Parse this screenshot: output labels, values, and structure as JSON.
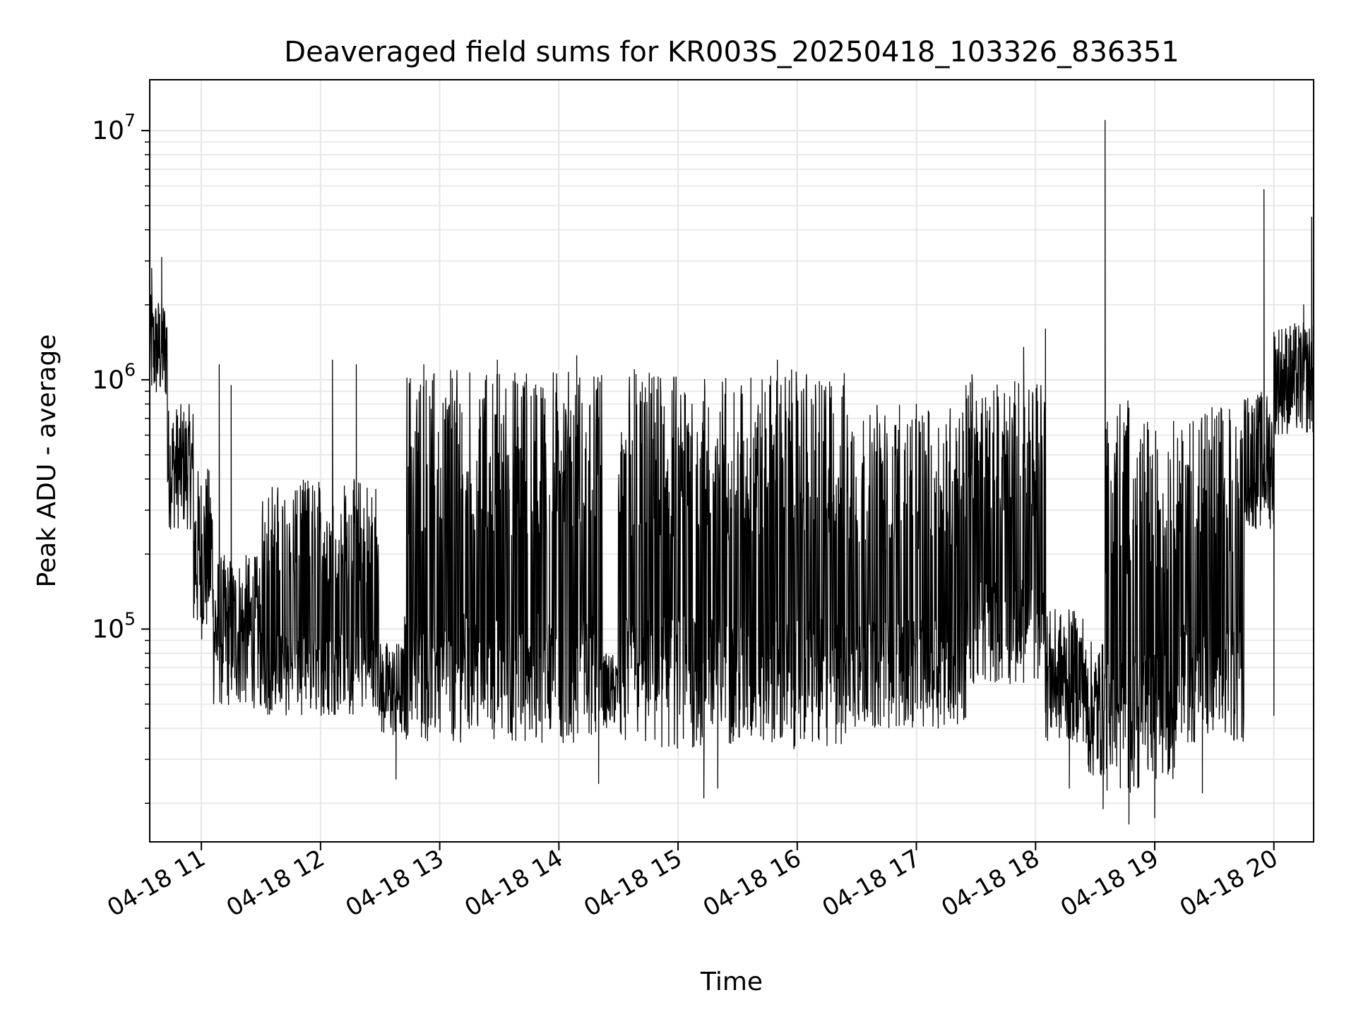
{
  "chart_data": {
    "type": "line",
    "title": "Deaveraged field sums for KR003S_20250418_103326_836351",
    "xlabel": "Time",
    "ylabel": "Peak ADU - average",
    "x_axis": {
      "kind": "datetime",
      "range": [
        "2025-04-18T10:34",
        "2025-04-18T20:20"
      ],
      "tick_labels": [
        "04-18 11",
        "04-18 12",
        "04-18 13",
        "04-18 14",
        "04-18 15",
        "04-18 16",
        "04-18 17",
        "04-18 18",
        "04-18 19",
        "04-18 20"
      ]
    },
    "y_axis": {
      "scale": "log",
      "range": [
        14000,
        16000000
      ],
      "tick_labels": [
        {
          "value": 100000,
          "base": "10",
          "exp": "5"
        },
        {
          "value": 1000000,
          "base": "10",
          "exp": "6"
        },
        {
          "value": 10000000,
          "base": "10",
          "exp": "7"
        }
      ]
    },
    "grid": true,
    "line_color": "#000000",
    "series": [
      {
        "name": "",
        "segments": [
          {
            "start": "2025-04-18T10:34",
            "end": "2025-04-18T10:43",
            "low": 800000,
            "high": 2200000
          },
          {
            "start": "2025-04-18T10:43",
            "end": "2025-04-18T10:56",
            "low": 250000,
            "high": 800000
          },
          {
            "start": "2025-04-18T10:56",
            "end": "2025-04-18T11:06",
            "low": 90000,
            "high": 450000
          },
          {
            "start": "2025-04-18T11:06",
            "end": "2025-04-18T11:30",
            "low": 48000,
            "high": 200000
          },
          {
            "start": "2025-04-18T11:30",
            "end": "2025-04-18T12:30",
            "low": 45000,
            "high": 400000
          },
          {
            "start": "2025-04-18T12:30",
            "end": "2025-04-18T12:42",
            "low": 36000,
            "high": 90000
          },
          {
            "start": "2025-04-18T12:42",
            "end": "2025-04-18T14:22",
            "low": 35000,
            "high": 1100000
          },
          {
            "start": "2025-04-18T14:22",
            "end": "2025-04-18T14:30",
            "low": 40000,
            "high": 80000
          },
          {
            "start": "2025-04-18T14:30",
            "end": "2025-04-18T16:25",
            "low": 33000,
            "high": 1100000
          },
          {
            "start": "2025-04-18T16:25",
            "end": "2025-04-18T17:25",
            "low": 40000,
            "high": 800000
          },
          {
            "start": "2025-04-18T17:25",
            "end": "2025-04-18T18:05",
            "low": 60000,
            "high": 1000000
          },
          {
            "start": "2025-04-18T18:05",
            "end": "2025-04-18T18:25",
            "low": 35000,
            "high": 120000
          },
          {
            "start": "2025-04-18T18:25",
            "end": "2025-04-18T18:35",
            "low": 25000,
            "high": 90000
          },
          {
            "start": "2025-04-18T18:35",
            "end": "2025-04-18T18:55",
            "low": 22000,
            "high": 850000
          },
          {
            "start": "2025-04-18T18:55",
            "end": "2025-04-18T19:10",
            "low": 25000,
            "high": 700000
          },
          {
            "start": "2025-04-18T19:10",
            "end": "2025-04-18T19:45",
            "low": 35000,
            "high": 800000
          },
          {
            "start": "2025-04-18T19:45",
            "end": "2025-04-18T20:00",
            "low": 250000,
            "high": 900000
          },
          {
            "start": "2025-04-18T20:00",
            "end": "2025-04-18T20:20",
            "low": 600000,
            "high": 1700000
          }
        ],
        "spikes": [
          {
            "x": "2025-04-18T10:35",
            "y": 2800000
          },
          {
            "x": "2025-04-18T10:40",
            "y": 3100000
          },
          {
            "x": "2025-04-18T11:09",
            "y": 1150000
          },
          {
            "x": "2025-04-18T11:15",
            "y": 950000
          },
          {
            "x": "2025-04-18T12:06",
            "y": 1200000
          },
          {
            "x": "2025-04-18T12:18",
            "y": 1150000
          },
          {
            "x": "2025-04-18T12:52",
            "y": 1150000
          },
          {
            "x": "2025-04-18T13:29",
            "y": 1200000
          },
          {
            "x": "2025-04-18T14:09",
            "y": 1250000
          },
          {
            "x": "2025-04-18T14:38",
            "y": 1100000
          },
          {
            "x": "2025-04-18T15:50",
            "y": 1200000
          },
          {
            "x": "2025-04-18T17:28",
            "y": 1050000
          },
          {
            "x": "2025-04-18T17:54",
            "y": 1350000
          },
          {
            "x": "2025-04-18T18:05",
            "y": 1600000
          },
          {
            "x": "2025-04-18T18:35",
            "y": 11000000
          },
          {
            "x": "2025-04-18T19:55",
            "y": 5800000
          },
          {
            "x": "2025-04-18T20:15",
            "y": 2000000
          },
          {
            "x": "2025-04-18T20:19",
            "y": 4500000
          }
        ],
        "dips": [
          {
            "x": "2025-04-18T12:38",
            "y": 25000
          },
          {
            "x": "2025-04-18T14:20",
            "y": 24000
          },
          {
            "x": "2025-04-18T15:13",
            "y": 21000
          },
          {
            "x": "2025-04-18T15:20",
            "y": 23000
          },
          {
            "x": "2025-04-18T18:17",
            "y": 23000
          },
          {
            "x": "2025-04-18T18:34",
            "y": 19000
          },
          {
            "x": "2025-04-18T18:47",
            "y": 16500
          },
          {
            "x": "2025-04-18T19:00",
            "y": 17500
          },
          {
            "x": "2025-04-18T19:24",
            "y": 22000
          },
          {
            "x": "2025-04-18T20:00",
            "y": 45000
          }
        ]
      }
    ]
  }
}
